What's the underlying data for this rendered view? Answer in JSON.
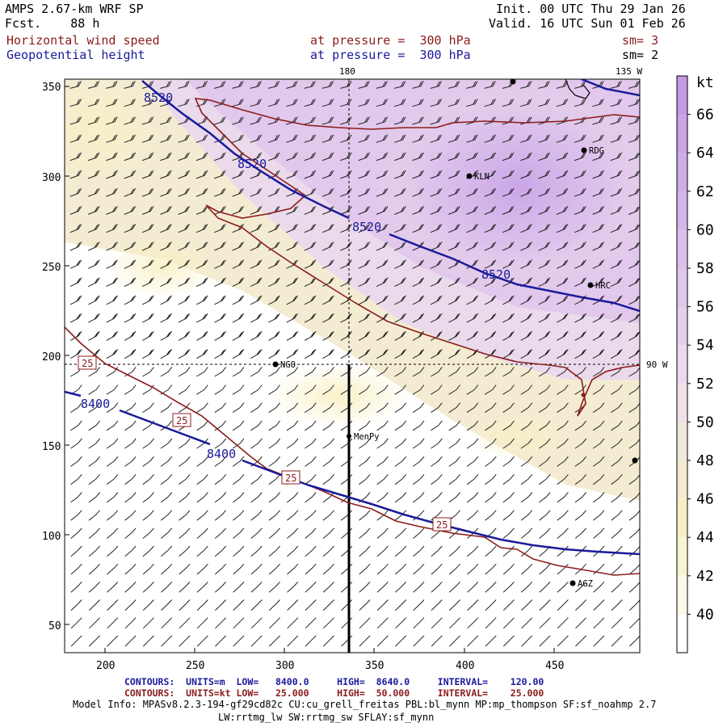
{
  "header": {
    "model_title": "AMPS 2.67-km WRF SP",
    "init_label": "Init.",
    "init_time": "00 UTC Thu 29 Jan 26",
    "fcst_label": "Fcst.",
    "fcst_hours": "88 h",
    "valid_label": "Valid.",
    "valid_time": "16 UTC Sun 01 Feb 26",
    "field1_name": "Horizontal wind speed",
    "field1_level": "at pressure =  300 hPa",
    "field1_sm": "sm= 3",
    "field2_name": "Geopotential height",
    "field2_level": "at pressure =  300 hPa",
    "field2_sm": "sm= 2"
  },
  "map": {
    "meridian_180": "180",
    "meridian_135w": "135 W",
    "meridian_90w": "90 W",
    "x_ticks": [
      "200",
      "250",
      "300",
      "350",
      "400",
      "450"
    ],
    "y_ticks": [
      "350",
      "300",
      "250",
      "200",
      "150",
      "100",
      "50"
    ],
    "height_labels": [
      "8520",
      "8520",
      "8520",
      "8520",
      "8400",
      "8400"
    ],
    "speed_labels": [
      "25",
      "25",
      "25",
      "25"
    ],
    "stations": [
      {
        "name": "RDG"
      },
      {
        "name": "KLN"
      },
      {
        "name": "HRC"
      },
      {
        "name": "NGO"
      },
      {
        "name": "MenPy"
      },
      {
        "name": "AGZ"
      },
      {
        "name": ""
      },
      {
        "name": ""
      }
    ]
  },
  "colorbar": {
    "unit": "kt",
    "labels": [
      "66",
      "64",
      "62",
      "60",
      "58",
      "56",
      "54",
      "52",
      "50",
      "48",
      "46",
      "44",
      "42",
      "40"
    ],
    "colors": [
      "#c39be4",
      "#c9a4e6",
      "#cfade8",
      "#d5b6ea",
      "#dbbfec",
      "#e0c8ec",
      "#e5d0ec",
      "#eadaec",
      "#eee2e8",
      "#f1e8de",
      "#f4ecd2",
      "#f6efc4",
      "#f9f4d4",
      "#fcf9ea",
      "#ffffff"
    ]
  },
  "footer": {
    "c1_title": "CONTOURS:",
    "c1_units": "UNITS=m",
    "c1_low": "LOW=   8400.0",
    "c1_high": "HIGH=  8640.0",
    "c1_interval": "INTERVAL=    120.00",
    "c2_title": "CONTOURS:",
    "c2_units": "UNITS=kt",
    "c2_low": "LOW=   25.000",
    "c2_high": "HIGH=  50.000",
    "c2_interval": "INTERVAL=    25.000",
    "model_info_1": "Model Info: MPASv8.2.3-194-gf29cd82c CU:cu_grell_freitas PBL:bl_mynn MP:mp_thompson SF:sf_noahmp 2.7",
    "model_info_2": "LW:rrtmg_lw SW:rrtmg_sw SFLAY:sf_mynn"
  }
}
